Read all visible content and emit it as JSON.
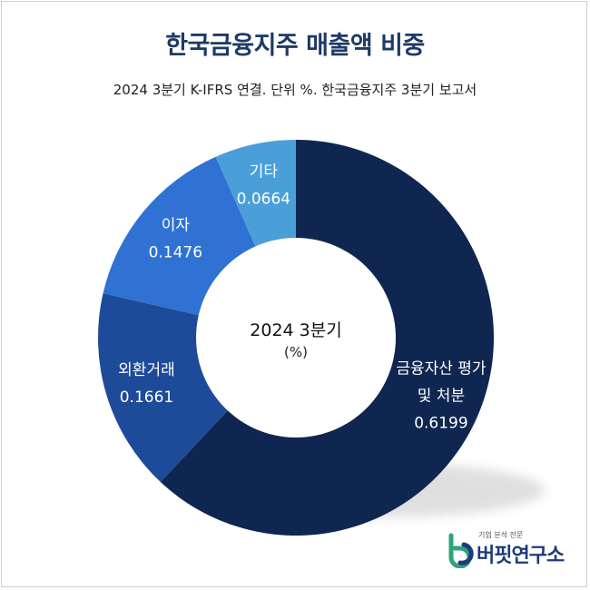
{
  "header": {
    "title": "한국금융지주 매출액 비중",
    "subtitle": "2024 3분기 K-IFRS 연결. 단위 %. 한국금융지주 3분기 보고서"
  },
  "chart_data": {
    "type": "pie",
    "title": "한국금융지주 매출액 비중",
    "subtitle": "2024 3분기 K-IFRS 연결. 단위 %. 한국금융지주 3분기 보고서",
    "center_label": "2024 3분기",
    "center_unit": "(%)",
    "slices": [
      {
        "label": "금융자산 평가 및 처분",
        "label_lines": [
          "금융자산 평가",
          "및 처분"
        ],
        "value": 0.6199,
        "value_text": "0.6199",
        "color": "#0f2650"
      },
      {
        "label": "외환거래",
        "label_lines": [
          "외환거래"
        ],
        "value": 0.1661,
        "value_text": "0.1661",
        "color": "#1e4a9a"
      },
      {
        "label": "이자",
        "label_lines": [
          "이자"
        ],
        "value": 0.1476,
        "value_text": "0.1476",
        "color": "#2f72d3"
      },
      {
        "label": "기타",
        "label_lines": [
          "기타"
        ],
        "value": 0.0664,
        "value_text": "0.0664",
        "color": "#4a9fd8"
      }
    ]
  },
  "logo": {
    "tagline": "기업 분석 전문",
    "name": "버핏연구소",
    "colors": [
      "#2fa37b",
      "#1d3b78"
    ]
  }
}
